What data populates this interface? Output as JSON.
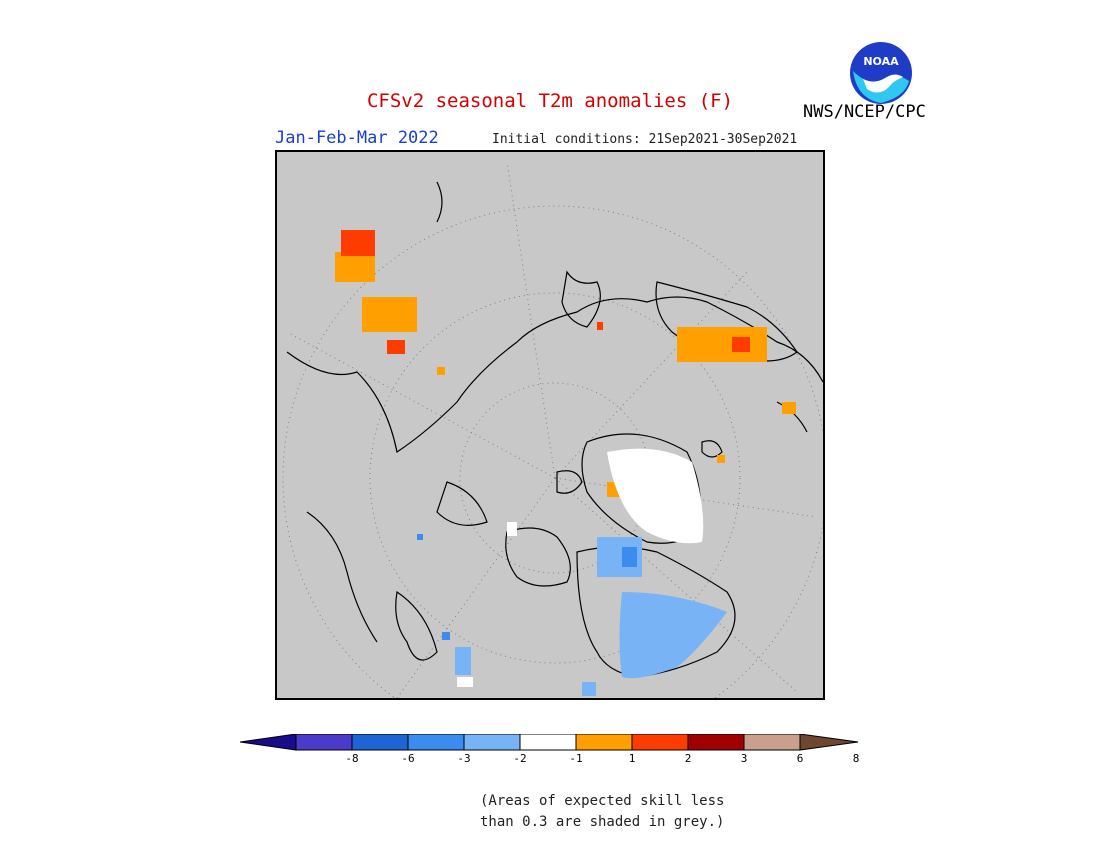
{
  "header": {
    "title": "CFSv2 seasonal T2m anomalies (F)",
    "period": "Jan-Feb-Mar 2022",
    "initial_conditions": "Initial conditions: 21Sep2021-30Sep2021",
    "organization": "NWS/NCEP/CPC",
    "logo_text": "NOAA"
  },
  "colors": {
    "title": "#d40000",
    "period": "#1a3fd0",
    "map_background_grey": "#c8c8c8",
    "bins": [
      "#1a0a8c",
      "#4a3cc8",
      "#1e64d2",
      "#3c8cf0",
      "#78b4f5",
      "#ffffff",
      "#ffa000",
      "#ff3c00",
      "#a00000",
      "#c8a08c",
      "#6e4632"
    ]
  },
  "colorbar": {
    "tick_labels": [
      "-8",
      "-6",
      "-3",
      "-2",
      "-1",
      "1",
      "2",
      "3",
      "6",
      "8"
    ]
  },
  "note": {
    "line1": "(Areas of expected skill less",
    "line2": "than 0.3 are shaded in grey.)"
  }
}
